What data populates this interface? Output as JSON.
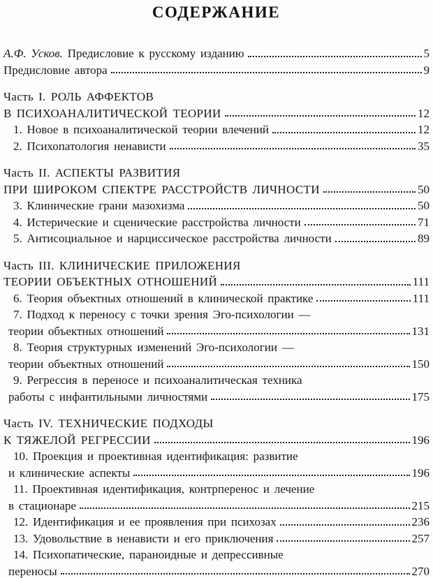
{
  "page": {
    "title": "СОДЕРЖАНИЕ"
  },
  "toc": {
    "lines": [
      {
        "style": "flush",
        "italic_prefix": "А.Ф. Усков.",
        "text": " Предисловие к русскому изданию",
        "page": "5"
      },
      {
        "style": "flush",
        "text": "Предисловие автора",
        "page": "9"
      },
      {
        "style": "part",
        "gap": true,
        "text": "Часть I. РОЛЬ АФФЕКТОВ"
      },
      {
        "style": "part",
        "text": "В ПСИХОАНАЛИТИЧЕСКОЙ ТЕОРИИ",
        "page": "12"
      },
      {
        "style": "item",
        "text": "1. Новое в психоаналитической теории влечений",
        "page": "12"
      },
      {
        "style": "item",
        "text": "2. Психопатология ненависти",
        "page": "35"
      },
      {
        "style": "part",
        "gap": true,
        "text": "Часть II. АСПЕКТЫ РАЗВИТИЯ"
      },
      {
        "style": "part",
        "text": "ПРИ ШИРОКОМ СПЕКТРЕ РАССТРОЙСТВ ЛИЧНОСТИ",
        "page": "50"
      },
      {
        "style": "item",
        "text": "3. Клинические грани мазохизма",
        "page": "50"
      },
      {
        "style": "item",
        "text": "4. Истерические и сценические расстройства личности",
        "page": "71"
      },
      {
        "style": "item",
        "text": "5. Антисоциальное и нарциссическое расстройства личности",
        "page": "89"
      },
      {
        "style": "part",
        "gap": true,
        "text": "Часть III. КЛИНИЧЕСКИЕ ПРИЛОЖЕНИЯ"
      },
      {
        "style": "part",
        "text": "ТЕОРИИ ОБЪЕКТНЫХ ОТНОШЕНИЙ",
        "page": "111"
      },
      {
        "style": "item",
        "text": "6. Теория объектных отношений в клинической практике",
        "page": "111"
      },
      {
        "style": "item",
        "text": "7. Подход к переносу с точки зрения Эго-психологии —"
      },
      {
        "style": "cont",
        "text": "теории объектных отношений",
        "page": "131"
      },
      {
        "style": "item",
        "text": "8. Теория структурных изменений Эго-психологии —"
      },
      {
        "style": "cont",
        "text": "теории объектных отношений",
        "page": "150"
      },
      {
        "style": "item",
        "text": "9. Регрессия в переносе и психоаналитическая техника"
      },
      {
        "style": "cont",
        "text": "работы с инфантильными личностями",
        "page": "175"
      },
      {
        "style": "part",
        "gap": true,
        "text": "Часть IV. ТЕХНИЧЕСКИЕ ПОДХОДЫ"
      },
      {
        "style": "part",
        "text": "К ТЯЖЕЛОЙ РЕГРЕССИИ",
        "page": "196"
      },
      {
        "style": "item",
        "text": "10. Проекция и проективная идентификация: развитие"
      },
      {
        "style": "cont",
        "text": "и клинические аспекты",
        "page": "196"
      },
      {
        "style": "item",
        "text": "11. Проективная идентификация, контрперенос и лечение"
      },
      {
        "style": "cont",
        "text": "в стационаре",
        "page": "215"
      },
      {
        "style": "item",
        "text": "12. Идентификация и ее проявления при психозах",
        "page": "236"
      },
      {
        "style": "item",
        "text": "13. Удовольствие в ненависти и его приключения",
        "page": "257"
      },
      {
        "style": "item",
        "text": "14. Психопатические, параноидные и депрессивные"
      },
      {
        "style": "cont",
        "text": "переносы",
        "page": "270"
      }
    ]
  }
}
